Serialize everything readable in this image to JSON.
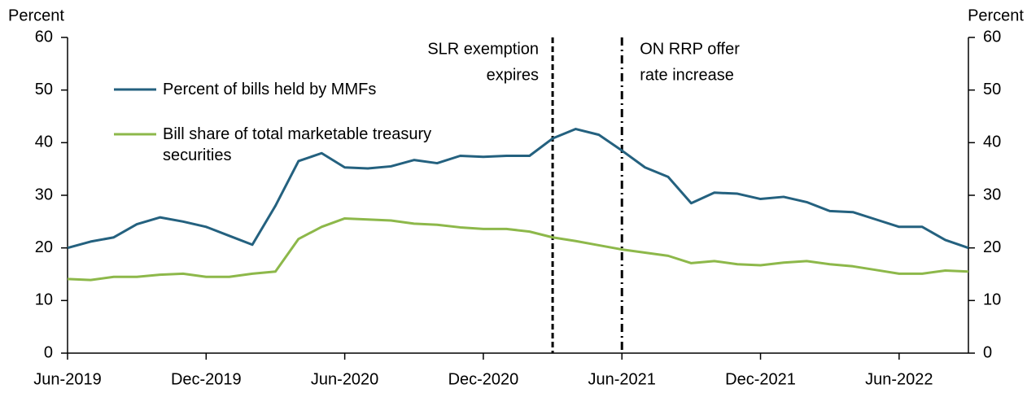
{
  "chart_data": {
    "type": "line",
    "y_label": "Percent",
    "y2_label": "Percent",
    "categories": [
      "Jun-2019",
      null,
      null,
      null,
      null,
      null,
      "Dec-2019",
      null,
      null,
      null,
      null,
      null,
      "Jun-2020",
      null,
      null,
      null,
      null,
      null,
      "Dec-2020",
      null,
      null,
      null,
      null,
      null,
      "Jun-2021",
      null,
      null,
      null,
      null,
      null,
      "Dec-2021",
      null,
      null,
      null,
      null,
      null,
      "Jun-2022",
      null,
      null,
      null
    ],
    "series": [
      {
        "name": "Percent of bills held by MMFs",
        "color": "#24617f",
        "values": [
          20,
          21.2,
          22,
          24.5,
          25.8,
          25,
          24,
          22.3,
          20.6,
          28,
          36.5,
          38,
          35.3,
          35.1,
          35.5,
          36.7,
          36.1,
          37.5,
          37.3,
          37.5,
          37.5,
          40.8,
          42.6,
          41.5,
          38.5,
          35.3,
          33.5,
          28.5,
          30.5,
          30.3,
          29.3,
          29.7,
          28.7,
          27,
          26.8,
          25.4,
          24,
          24,
          21.5,
          20
        ]
      },
      {
        "name": "Bill share of total marketable treasury securities",
        "color": "#8db84a",
        "values": [
          14.1,
          13.9,
          14.5,
          14.5,
          14.9,
          15.1,
          14.5,
          14.5,
          15.1,
          15.5,
          21.7,
          24,
          25.6,
          25.4,
          25.2,
          24.6,
          24.4,
          23.9,
          23.6,
          23.6,
          23.1,
          22,
          21.3,
          20.5,
          19.7,
          19.1,
          18.5,
          17.1,
          17.5,
          16.9,
          16.7,
          17.2,
          17.5,
          16.9,
          16.5,
          15.8,
          15.1,
          15.1,
          15.7,
          15.5
        ]
      }
    ],
    "ylim": [
      0,
      60
    ],
    "yticks": [
      0,
      10,
      20,
      30,
      40,
      50,
      60
    ],
    "y2lim": [
      0,
      60
    ],
    "y2ticks": [
      0,
      10,
      20,
      30,
      40,
      50,
      60
    ],
    "annotations": [
      {
        "text": [
          "SLR exemption",
          "expires"
        ],
        "x": 21,
        "style": "dashed",
        "side": "left"
      },
      {
        "text": [
          "ON RRP offer",
          "rate increase"
        ],
        "x": 24,
        "style": "dashdot",
        "side": "right"
      }
    ]
  }
}
